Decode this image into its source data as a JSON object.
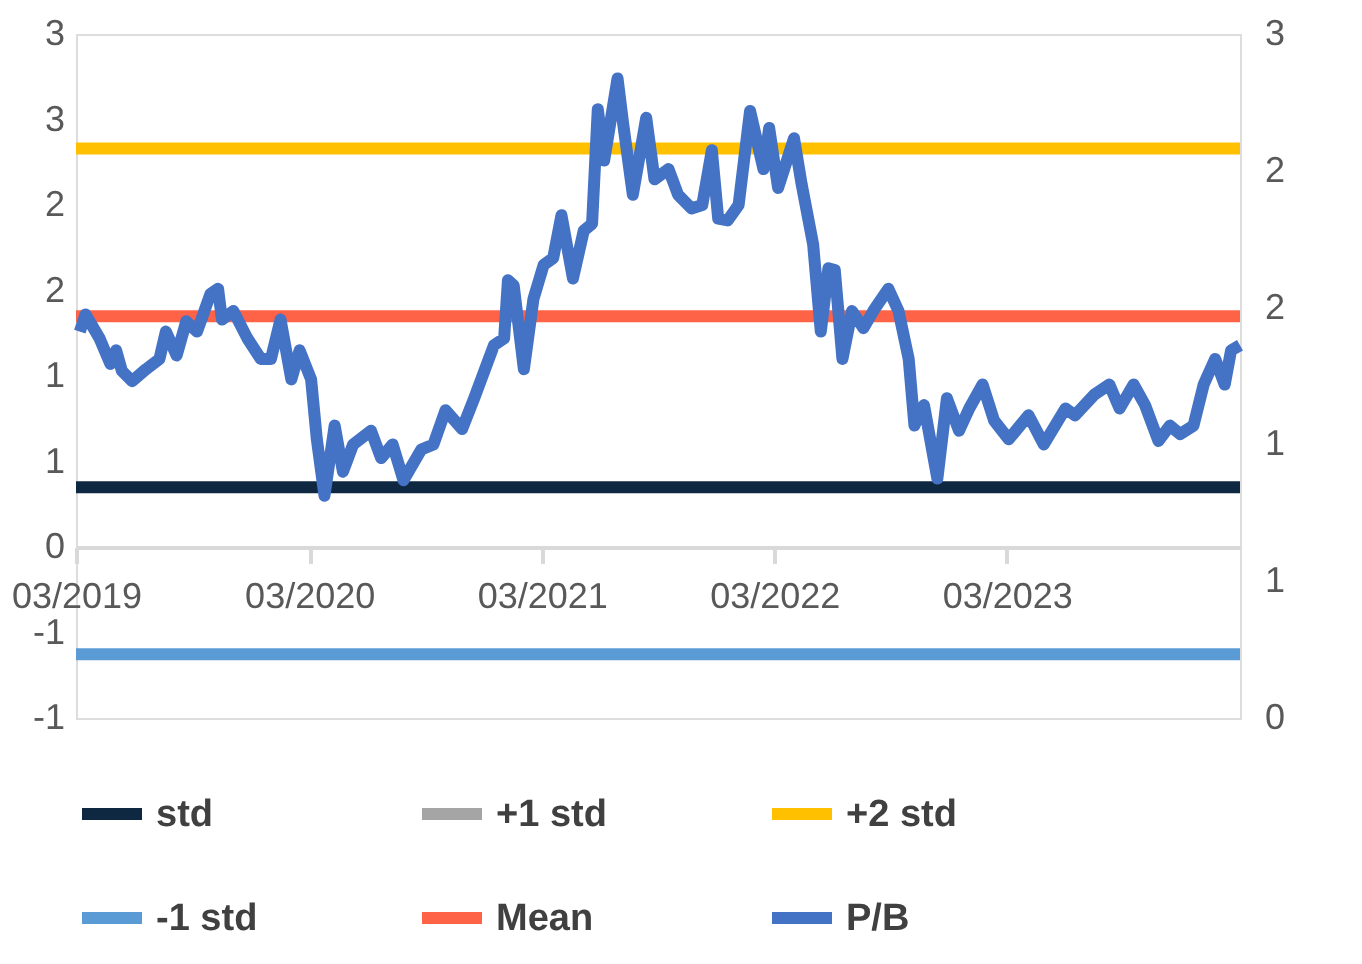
{
  "chart_data": {
    "type": "line",
    "xlim": [
      "2019-03-01",
      "2024-03-01"
    ],
    "xticks": [
      {
        "value": "2019-03-01",
        "label": "03/2019"
      },
      {
        "value": "2020-03-01",
        "label": "03/2020"
      },
      {
        "value": "2021-03-01",
        "label": "03/2021"
      },
      {
        "value": "2022-03-01",
        "label": "03/2022"
      },
      {
        "value": "2023-03-01",
        "label": "03/2023"
      }
    ],
    "ylim": [
      -1,
      3
    ],
    "yticks": [
      {
        "value": 3,
        "label": "3"
      },
      {
        "value": 2.5,
        "label": "3"
      },
      {
        "value": 2,
        "label": "2"
      },
      {
        "value": 1.5,
        "label": "2"
      },
      {
        "value": 1,
        "label": "1"
      },
      {
        "value": 0.5,
        "label": "1"
      },
      {
        "value": 0,
        "label": "0"
      },
      {
        "value": -0.5,
        "label": "-1"
      },
      {
        "value": -1,
        "label": "-1"
      }
    ],
    "y2lim": [
      0,
      3
    ],
    "y2ticks": [
      {
        "value": 0,
        "label": "0"
      },
      {
        "value": 0.6,
        "label": "1"
      },
      {
        "value": 1.2,
        "label": "1"
      },
      {
        "value": 1.8,
        "label": "2"
      },
      {
        "value": 2.4,
        "label": "2"
      },
      {
        "value": 3,
        "label": "3"
      }
    ],
    "grid": false,
    "legend": "bottom",
    "marker": "none",
    "line_style": "solid",
    "series": [
      {
        "name": "std",
        "color": "#0e2841",
        "x": [
          "2019-03-01",
          "2024-03-01"
        ],
        "values": [
          0.35,
          0.35
        ]
      },
      {
        "name": "+1 std",
        "color": "#a5a5a5"
      },
      {
        "name": "+2 std",
        "color": "#ffc000",
        "x": [
          "2019-03-01",
          "2024-03-01"
        ],
        "values": [
          2.33,
          2.33
        ]
      },
      {
        "name": "-1 std",
        "color": "#5b9bd5",
        "axis": "y2",
        "x": [
          "2019-03-01",
          "2024-03-01"
        ],
        "values": [
          0.28,
          0.28
        ]
      },
      {
        "name": "Mean",
        "color": "#ff6347",
        "x": [
          "2019-03-01",
          "2024-03-01"
        ],
        "values": [
          1.35,
          1.35
        ]
      },
      {
        "name": "P/B",
        "color": "#4472c4",
        "x": [
          "2019-03-07",
          "2019-03-16",
          "2019-04-07",
          "2019-04-24",
          "2019-05-03",
          "2019-05-12",
          "2019-05-28",
          "2019-06-19",
          "2019-07-10",
          "2019-07-20",
          "2019-08-06",
          "2019-08-21",
          "2019-09-07",
          "2019-09-28",
          "2019-10-10",
          "2019-10-16",
          "2019-11-03",
          "2019-11-25",
          "2019-12-16",
          "2020-01-01",
          "2020-01-16",
          "2020-02-02",
          "2020-02-15",
          "2020-03-04",
          "2020-03-13",
          "2020-03-25",
          "2020-04-10",
          "2020-04-23",
          "2020-05-09",
          "2020-06-06",
          "2020-06-22",
          "2020-07-10",
          "2020-07-27",
          "2020-08-24",
          "2020-09-12",
          "2020-10-01",
          "2020-10-27",
          "2020-11-15",
          "2020-12-01",
          "2020-12-16",
          "2021-01-01",
          "2021-01-07",
          "2021-01-16",
          "2021-02-01",
          "2021-02-16",
          "2021-03-04",
          "2021-03-19",
          "2021-04-01",
          "2021-04-19",
          "2021-05-06",
          "2021-05-19",
          "2021-05-28",
          "2021-06-07",
          "2021-06-28",
          "2021-07-07",
          "2021-07-22",
          "2021-08-12",
          "2021-08-25",
          "2021-09-16",
          "2021-10-01",
          "2021-10-22",
          "2021-11-08",
          "2021-11-23",
          "2021-12-03",
          "2021-12-18",
          "2022-01-04",
          "2022-01-22",
          "2022-02-12",
          "2022-02-21",
          "2022-03-07",
          "2022-04-01",
          "2022-04-13",
          "2022-05-01",
          "2022-05-13",
          "2022-05-25",
          "2022-06-04",
          "2022-06-16",
          "2022-07-01",
          "2022-07-19",
          "2022-08-05",
          "2022-08-27",
          "2022-09-12",
          "2022-09-28",
          "2022-10-07",
          "2022-10-22",
          "2022-11-12",
          "2022-11-27",
          "2022-12-16",
          "2023-01-01",
          "2023-01-22",
          "2023-02-09",
          "2023-03-04",
          "2023-04-04",
          "2023-04-28",
          "2023-06-01",
          "2023-06-16",
          "2023-07-16",
          "2023-08-09",
          "2023-08-25",
          "2023-09-16",
          "2023-10-04",
          "2023-10-25",
          "2023-11-12",
          "2023-11-28",
          "2023-12-19",
          "2024-01-04",
          "2024-01-22",
          "2024-02-06",
          "2024-02-16",
          "2024-03-01"
        ],
        "values": [
          1.26,
          1.36,
          1.22,
          1.07,
          1.15,
          1.03,
          0.97,
          1.04,
          1.1,
          1.26,
          1.12,
          1.32,
          1.26,
          1.48,
          1.51,
          1.33,
          1.38,
          1.22,
          1.1,
          1.1,
          1.33,
          0.98,
          1.15,
          0.98,
          0.63,
          0.3,
          0.71,
          0.44,
          0.6,
          0.68,
          0.52,
          0.6,
          0.39,
          0.57,
          0.6,
          0.8,
          0.69,
          0.87,
          1.03,
          1.18,
          1.22,
          1.56,
          1.53,
          1.04,
          1.45,
          1.65,
          1.69,
          1.94,
          1.57,
          1.85,
          1.89,
          2.56,
          2.26,
          2.74,
          2.47,
          2.06,
          2.51,
          2.15,
          2.21,
          2.06,
          1.98,
          2.0,
          2.32,
          1.92,
          1.91,
          2.0,
          2.55,
          2.21,
          2.45,
          2.1,
          2.39,
          2.12,
          1.77,
          1.26,
          1.63,
          1.62,
          1.1,
          1.38,
          1.28,
          1.39,
          1.51,
          1.38,
          1.1,
          0.71,
          0.83,
          0.4,
          0.87,
          0.68,
          0.81,
          0.95,
          0.74,
          0.63,
          0.77,
          0.6,
          0.81,
          0.77,
          0.89,
          0.95,
          0.81,
          0.95,
          0.83,
          0.62,
          0.71,
          0.66,
          0.71,
          0.95,
          1.1,
          0.95,
          1.15,
          1.18
        ]
      }
    ]
  }
}
